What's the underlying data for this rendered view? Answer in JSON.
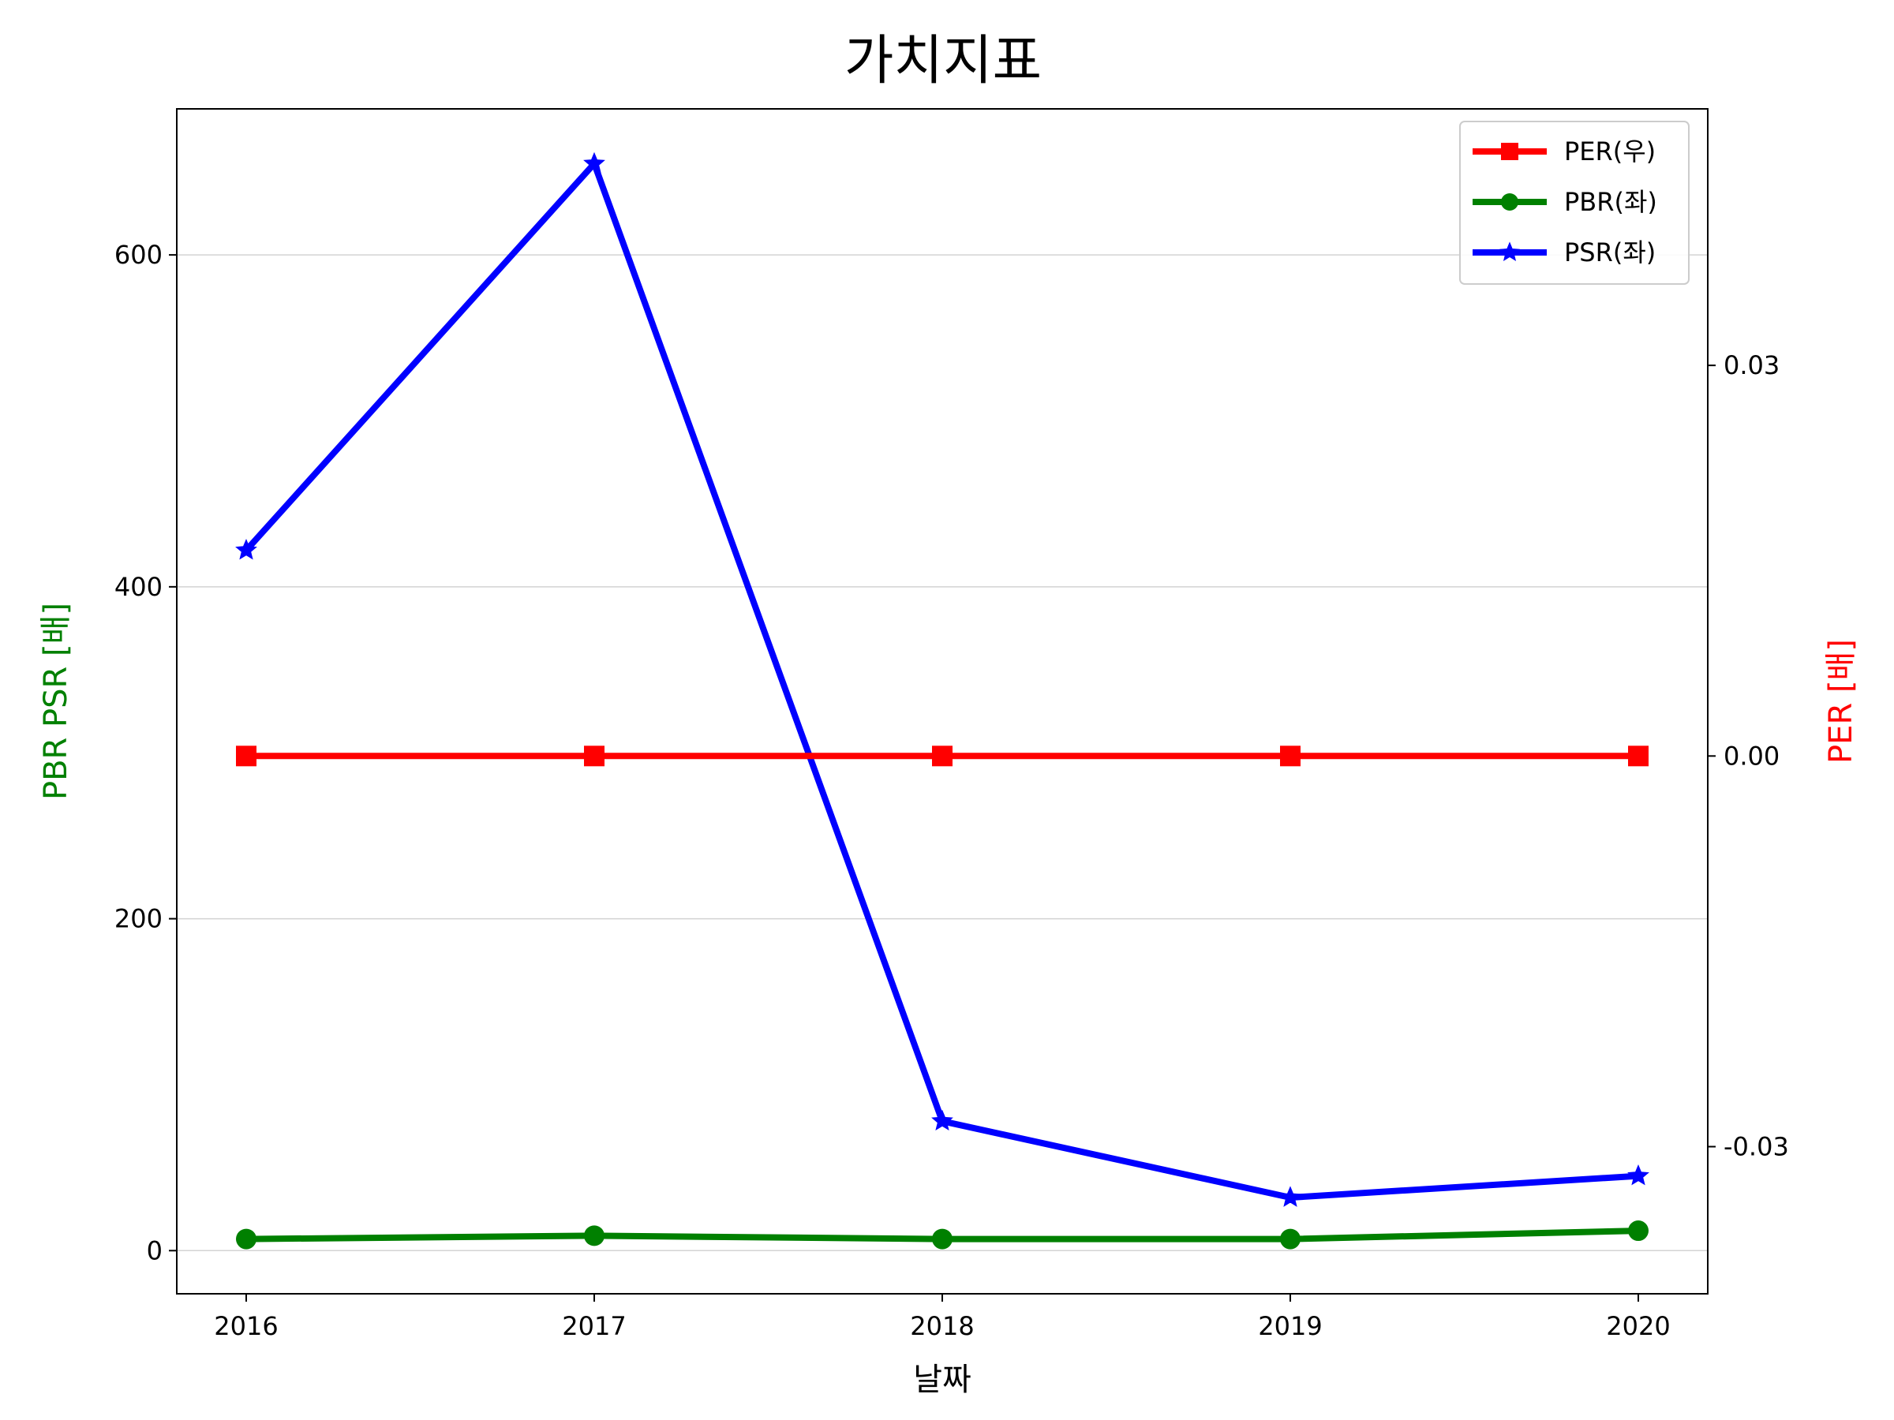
{
  "chart_data": {
    "type": "line",
    "title": "가치지표",
    "xlabel": "날짜",
    "ylabel_left": "PBR PSR [배]",
    "ylabel_right": "PER [배]",
    "ylabel_left_color": "#008000",
    "ylabel_right_color": "#ff0000",
    "x": [
      "2016",
      "2017",
      "2018",
      "2019",
      "2020"
    ],
    "ylim_left": [
      -26,
      688
    ],
    "yticks_left": [
      0,
      200,
      400,
      600
    ],
    "ylim_right": [
      -0.0413,
      0.0497
    ],
    "yticks_right": [
      -0.03,
      0.0,
      0.03
    ],
    "ytick_labels_right": [
      "-0.03",
      "0.00",
      "0.03"
    ],
    "grid": true,
    "legend_position": "top-right",
    "series": [
      {
        "name": "PER(우)",
        "axis": "right",
        "color": "#ff0000",
        "marker": "square",
        "values": [
          0,
          0,
          0,
          0,
          0
        ]
      },
      {
        "name": "PBR(좌)",
        "axis": "left",
        "color": "#008000",
        "marker": "circle",
        "values": [
          7,
          9,
          7,
          7,
          12
        ]
      },
      {
        "name": "PSR(좌)",
        "axis": "left",
        "color": "#0000ff",
        "marker": "star",
        "values": [
          422,
          655,
          78,
          32,
          45
        ]
      }
    ]
  }
}
